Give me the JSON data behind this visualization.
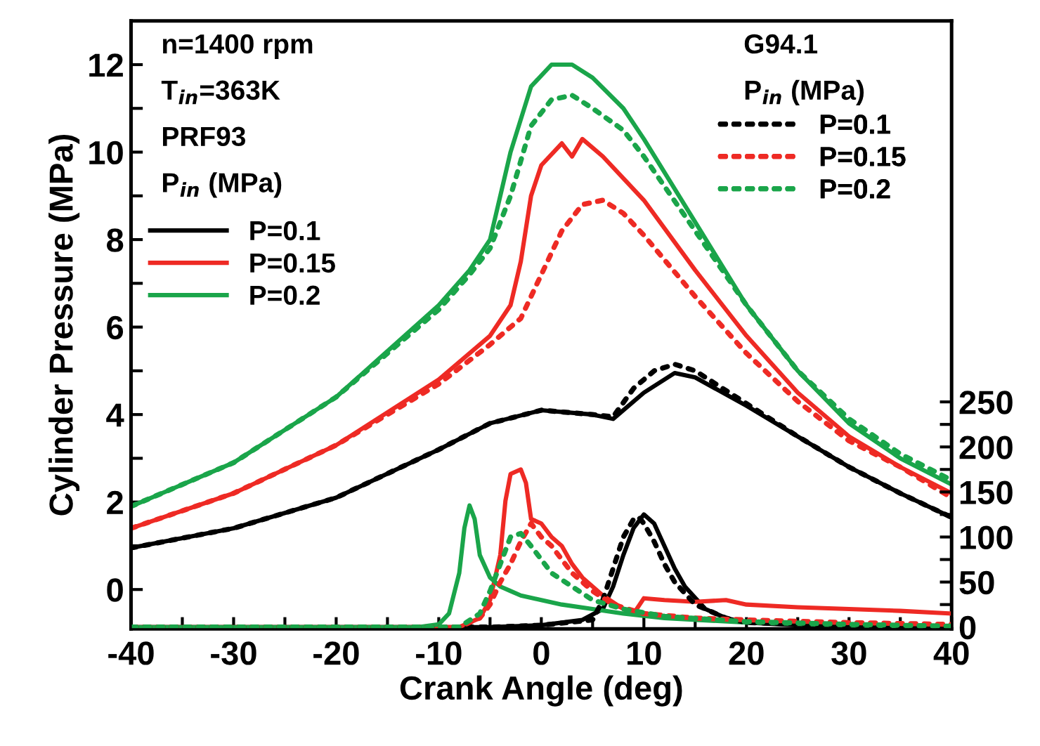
{
  "chart_data": {
    "type": "line",
    "xlabel": "Crank Angle (deg)",
    "ylabel": "Cylinder Pressure (MPa)",
    "xlim": [
      -40,
      40
    ],
    "xticks": [
      -40,
      {
        "value": -35,
        "label": null
      },
      -30,
      {
        "value": -25,
        "label": null
      },
      -20,
      {
        "value": -15,
        "label": null
      },
      -10,
      {
        "value": -5,
        "label": null
      },
      0,
      {
        "value": 5,
        "label": null
      },
      10,
      {
        "value": 15,
        "label": null
      },
      20,
      {
        "value": 25,
        "label": null
      },
      30,
      {
        "value": 35,
        "label": null
      },
      40
    ],
    "ylim": [
      -0.9,
      13
    ],
    "yticks": [
      0,
      {
        "value": 1,
        "label": null
      },
      2,
      {
        "value": 3,
        "label": null
      },
      4,
      {
        "value": 5,
        "label": null
      },
      6,
      {
        "value": 7,
        "label": null
      },
      8,
      {
        "value": 9,
        "label": null
      },
      10,
      {
        "value": 11,
        "label": null
      },
      12
    ],
    "y2lim": [
      -2,
      673
    ],
    "y2ticks": [
      0,
      {
        "value": 25,
        "label": null
      },
      50,
      {
        "value": 75,
        "label": null
      },
      100,
      {
        "value": 125,
        "label": null
      },
      150,
      {
        "value": 175,
        "label": null
      },
      200,
      {
        "value": 225,
        "label": null
      },
      250
    ],
    "legend": "top",
    "grid": false,
    "annotations": [
      "n=1400 rpm",
      "T$_{in}$=363K",
      "PRF93",
      "P$_{in}$ (MPa)",
      "G94.1",
      "P$_{in}$ (MPa)"
    ],
    "series": [
      {
        "name": "P=0.1",
        "color": "#000000",
        "line_style": "solid",
        "x": [
          -40,
          -30,
          -20,
          -10,
          -5,
          0,
          5,
          7,
          10,
          13,
          15,
          20,
          25,
          30,
          35,
          40
        ],
        "values": [
          0.95,
          1.4,
          2.1,
          3.2,
          3.8,
          4.1,
          4.0,
          3.9,
          4.5,
          4.95,
          4.85,
          4.2,
          3.5,
          2.8,
          2.2,
          1.65
        ]
      },
      {
        "name": "P=0.15",
        "color": "#ee2a24",
        "line_style": "solid",
        "x": [
          -40,
          -30,
          -20,
          -10,
          -5,
          -3,
          -2,
          -1,
          0,
          2,
          3,
          4,
          6,
          10,
          15,
          20,
          25,
          30,
          35,
          40
        ],
        "values": [
          1.4,
          2.2,
          3.3,
          4.8,
          5.8,
          6.5,
          7.5,
          9.0,
          9.7,
          10.2,
          9.9,
          10.3,
          9.9,
          8.9,
          7.3,
          5.8,
          4.5,
          3.5,
          2.8,
          2.2
        ]
      },
      {
        "name": "P=0.2",
        "color": "#1aa54a",
        "line_style": "solid",
        "x": [
          -40,
          -30,
          -20,
          -10,
          -7,
          -5,
          -3,
          -1,
          1,
          3,
          5,
          8,
          10,
          15,
          20,
          25,
          30,
          35,
          40
        ],
        "values": [
          1.9,
          2.9,
          4.4,
          6.5,
          7.3,
          8.0,
          10.0,
          11.5,
          12.0,
          12.0,
          11.7,
          11.0,
          10.3,
          8.4,
          6.5,
          5.0,
          3.8,
          3.0,
          2.4
        ]
      },
      {
        "name": "P=0.1",
        "color": "#000000",
        "line_style": "dotted",
        "x": [
          -40,
          -30,
          -20,
          -10,
          -5,
          0,
          5,
          7,
          9,
          11,
          13,
          15,
          20,
          25,
          30,
          35,
          40
        ],
        "values": [
          0.95,
          1.4,
          2.1,
          3.2,
          3.8,
          4.1,
          4.0,
          3.95,
          4.6,
          5.0,
          5.15,
          5.0,
          4.25,
          3.5,
          2.8,
          2.2,
          1.65
        ]
      },
      {
        "name": "P=0.15",
        "color": "#ee2a24",
        "line_style": "dotted",
        "x": [
          -40,
          -30,
          -20,
          -10,
          -5,
          -2,
          0,
          2,
          4,
          6,
          8,
          10,
          15,
          20,
          25,
          30,
          35,
          40
        ],
        "values": [
          1.4,
          2.2,
          3.3,
          4.7,
          5.6,
          6.2,
          7.2,
          8.2,
          8.8,
          8.9,
          8.6,
          8.1,
          6.7,
          5.4,
          4.3,
          3.4,
          2.8,
          2.1
        ]
      },
      {
        "name": "P=0.2",
        "color": "#1aa54a",
        "line_style": "dotted",
        "x": [
          -40,
          -30,
          -20,
          -10,
          -7,
          -5,
          -3,
          -1,
          1,
          3,
          5,
          8,
          10,
          15,
          20,
          25,
          30,
          35,
          40
        ],
        "values": [
          1.9,
          2.9,
          4.4,
          6.4,
          7.2,
          7.8,
          9.0,
          10.6,
          11.2,
          11.3,
          11.0,
          10.5,
          9.9,
          8.2,
          6.5,
          5.0,
          3.9,
          3.1,
          2.5
        ]
      },
      {
        "color": "#000000",
        "line_style": "solid",
        "axis": "y2",
        "x": [
          -40,
          -5,
          0,
          4,
          6,
          7,
          8,
          9,
          10,
          11,
          12,
          13,
          14,
          16,
          18,
          20,
          25,
          30,
          40
        ],
        "values": [
          0,
          0,
          2,
          8,
          20,
          45,
          80,
          110,
          125,
          115,
          90,
          65,
          45,
          20,
          10,
          5,
          2,
          1,
          0
        ]
      },
      {
        "color": "#ee2a24",
        "line_style": "solid",
        "axis": "y2",
        "x": [
          -40,
          -8,
          -6,
          -5,
          -4,
          -3.5,
          -3,
          -2,
          -1.5,
          -1,
          0,
          1,
          2,
          3,
          4,
          6,
          8,
          9,
          10,
          12,
          15,
          18,
          20,
          25,
          30,
          35,
          40
        ],
        "values": [
          0,
          0,
          10,
          30,
          80,
          140,
          170,
          175,
          160,
          120,
          115,
          100,
          90,
          70,
          55,
          35,
          20,
          15,
          32,
          30,
          28,
          30,
          25,
          22,
          20,
          18,
          15
        ]
      },
      {
        "color": "#1aa54a",
        "line_style": "solid",
        "axis": "y2",
        "x": [
          -40,
          -12,
          -10,
          -9,
          -8,
          -7.5,
          -7,
          -6.5,
          -6,
          -5,
          -4,
          -3,
          -2,
          0,
          2,
          5,
          8,
          12,
          20,
          30,
          40
        ],
        "values": [
          0,
          0,
          3,
          15,
          60,
          110,
          135,
          120,
          80,
          55,
          45,
          40,
          35,
          30,
          25,
          20,
          15,
          10,
          5,
          2,
          0
        ]
      },
      {
        "color": "#000000",
        "line_style": "dotted",
        "axis": "y2",
        "x": [
          -40,
          -5,
          0,
          5,
          6,
          7,
          8,
          9,
          9.5,
          10,
          11,
          12,
          13,
          15,
          18,
          20,
          30,
          40
        ],
        "values": [
          0,
          0,
          2,
          8,
          30,
          65,
          100,
          120,
          122,
          115,
          95,
          70,
          50,
          25,
          10,
          5,
          2,
          0
        ]
      },
      {
        "color": "#ee2a24",
        "line_style": "dotted",
        "axis": "y2",
        "x": [
          -40,
          -8,
          -6,
          -5,
          -4,
          -3,
          -2,
          -1,
          0,
          1,
          3,
          5,
          7,
          10,
          15,
          20,
          30,
          40
        ],
        "values": [
          0,
          0,
          10,
          25,
          50,
          70,
          95,
          115,
          100,
          90,
          60,
          40,
          25,
          15,
          10,
          8,
          5,
          3
        ]
      },
      {
        "color": "#1aa54a",
        "line_style": "dotted",
        "axis": "y2",
        "x": [
          -40,
          -8,
          -6,
          -5,
          -4,
          -3,
          -2,
          -1,
          0,
          1,
          3,
          5,
          8,
          12,
          20,
          30,
          40
        ],
        "values": [
          0,
          0,
          15,
          40,
          70,
          100,
          104,
          90,
          75,
          60,
          45,
          30,
          20,
          12,
          6,
          3,
          1
        ]
      }
    ]
  }
}
